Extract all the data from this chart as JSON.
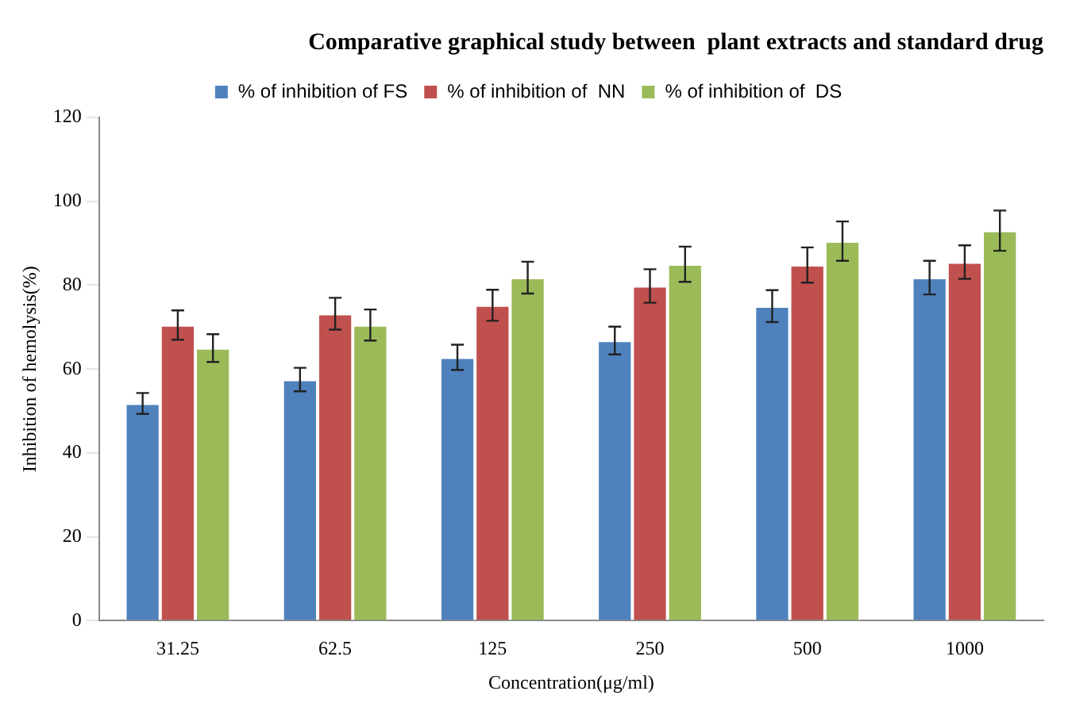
{
  "chart_data": {
    "type": "bar",
    "title": "Comparative graphical study between  plant extracts and standard drug",
    "xlabel": "Concentration(μg/ml)",
    "ylabel": "Inhibition of hemolysis(%)",
    "categories": [
      "31.25",
      "62.5",
      "125",
      "250",
      "500",
      "1000"
    ],
    "series": [
      {
        "name": "% of inhibition of FS",
        "color": "#4f81bd",
        "values": [
          51.8,
          57.5,
          62.8,
          66.8,
          75,
          81.8
        ],
        "errors": [
          2.5,
          2.8,
          3,
          3.3,
          3.8,
          4
        ]
      },
      {
        "name": "% of inhibition of  NN",
        "color": "#c0504d",
        "values": [
          70.5,
          73.2,
          75.2,
          79.8,
          84.8,
          85.5
        ],
        "errors": [
          3.5,
          3.8,
          3.7,
          4,
          4.2,
          4
        ]
      },
      {
        "name": "% of inhibition of  DS",
        "color": "#9bbb59",
        "values": [
          65,
          70.5,
          81.8,
          85,
          90.5,
          93
        ],
        "errors": [
          3.3,
          3.7,
          3.8,
          4.2,
          4.7,
          4.8
        ]
      }
    ],
    "ylim": [
      0,
      120
    ],
    "yticks": [
      0,
      20,
      40,
      60,
      80,
      100,
      120
    ],
    "grid": false,
    "legend": "top"
  }
}
